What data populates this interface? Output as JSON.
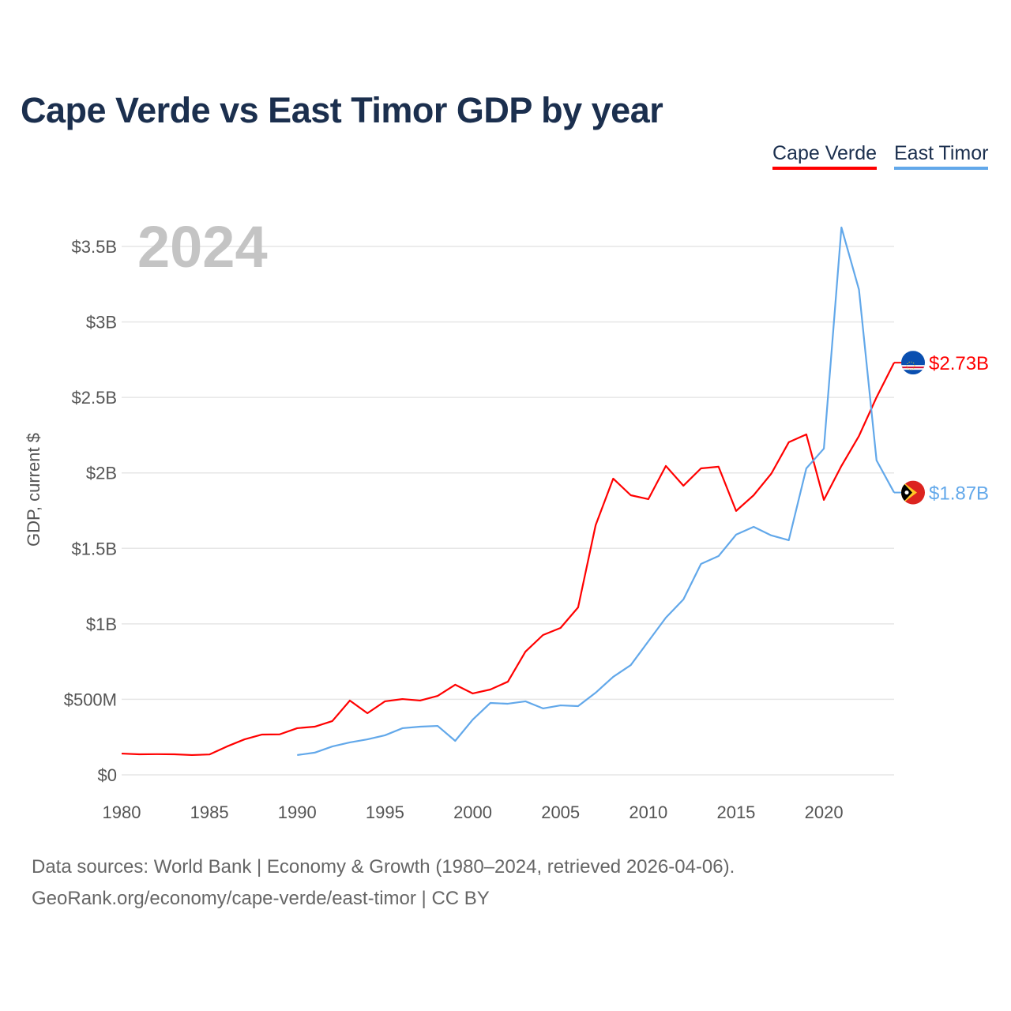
{
  "chart_data": {
    "type": "line",
    "title": "Cape Verde vs East Timor GDP by year",
    "ylabel": "GDP, current $",
    "xlabel": "",
    "year_label": "2024",
    "xlim": [
      1980,
      2024
    ],
    "ylim": [
      0,
      3.5
    ],
    "y_unit": "billions USD",
    "grid": true,
    "legend_position": "top-right",
    "x_ticks": [
      "1980",
      "1985",
      "1990",
      "1995",
      "2000",
      "2005",
      "2010",
      "2015",
      "2020"
    ],
    "x_tick_values": [
      1980,
      1985,
      1990,
      1995,
      2000,
      2005,
      2010,
      2015,
      2020
    ],
    "y_ticks": [
      "$0",
      "$500M",
      "$1B",
      "$1.5B",
      "$2B",
      "$2.5B",
      "$3B",
      "$3.5B"
    ],
    "y_tick_values": [
      0,
      0.5,
      1,
      1.5,
      2,
      2.5,
      3,
      3.5
    ],
    "series": [
      {
        "name": "Cape Verde",
        "color": "#ff0000",
        "end_label": "$2.73B",
        "flag": "cape-verde-flag",
        "x": [
          1980,
          1981,
          1982,
          1983,
          1984,
          1985,
          1986,
          1987,
          1988,
          1989,
          1990,
          1991,
          1992,
          1993,
          1994,
          1995,
          1996,
          1997,
          1998,
          1999,
          2000,
          2001,
          2002,
          2003,
          2004,
          2005,
          2006,
          2007,
          2008,
          2009,
          2010,
          2011,
          2012,
          2013,
          2014,
          2015,
          2016,
          2017,
          2018,
          2019,
          2020,
          2021,
          2022,
          2023,
          2024
        ],
        "values": [
          0.141,
          0.136,
          0.137,
          0.136,
          0.131,
          0.135,
          0.188,
          0.235,
          0.267,
          0.268,
          0.309,
          0.319,
          0.356,
          0.492,
          0.408,
          0.487,
          0.502,
          0.492,
          0.523,
          0.597,
          0.539,
          0.565,
          0.617,
          0.816,
          0.926,
          0.973,
          1.109,
          1.654,
          1.962,
          1.852,
          1.826,
          2.046,
          1.915,
          2.03,
          2.041,
          1.748,
          1.852,
          1.994,
          2.203,
          2.255,
          1.821,
          2.046,
          2.245,
          2.501,
          2.73
        ]
      },
      {
        "name": "East Timor",
        "color": "#62a8ea",
        "end_label": "$1.87B",
        "flag": "east-timor-flag",
        "x": [
          1990,
          1991,
          1992,
          1993,
          1994,
          1995,
          1996,
          1997,
          1998,
          1999,
          2000,
          2001,
          2002,
          2003,
          2004,
          2005,
          2006,
          2007,
          2008,
          2009,
          2010,
          2011,
          2012,
          2013,
          2014,
          2015,
          2016,
          2017,
          2018,
          2019,
          2020,
          2021,
          2022,
          2023,
          2024
        ],
        "values": [
          0.131,
          0.147,
          0.188,
          0.215,
          0.235,
          0.262,
          0.309,
          0.319,
          0.324,
          0.225,
          0.366,
          0.476,
          0.471,
          0.487,
          0.44,
          0.46,
          0.455,
          0.544,
          0.649,
          0.727,
          0.884,
          1.041,
          1.162,
          1.397,
          1.449,
          1.591,
          1.643,
          1.586,
          1.554,
          2.03,
          2.161,
          3.626,
          3.213,
          2.083,
          1.87
        ]
      }
    ]
  },
  "footer": {
    "line1": "Data sources: World Bank | Economy & Growth (1980–2024, retrieved 2026-04-06).",
    "line2": "GeoRank.org/economy/cape-verde/east-timor | CC BY"
  }
}
